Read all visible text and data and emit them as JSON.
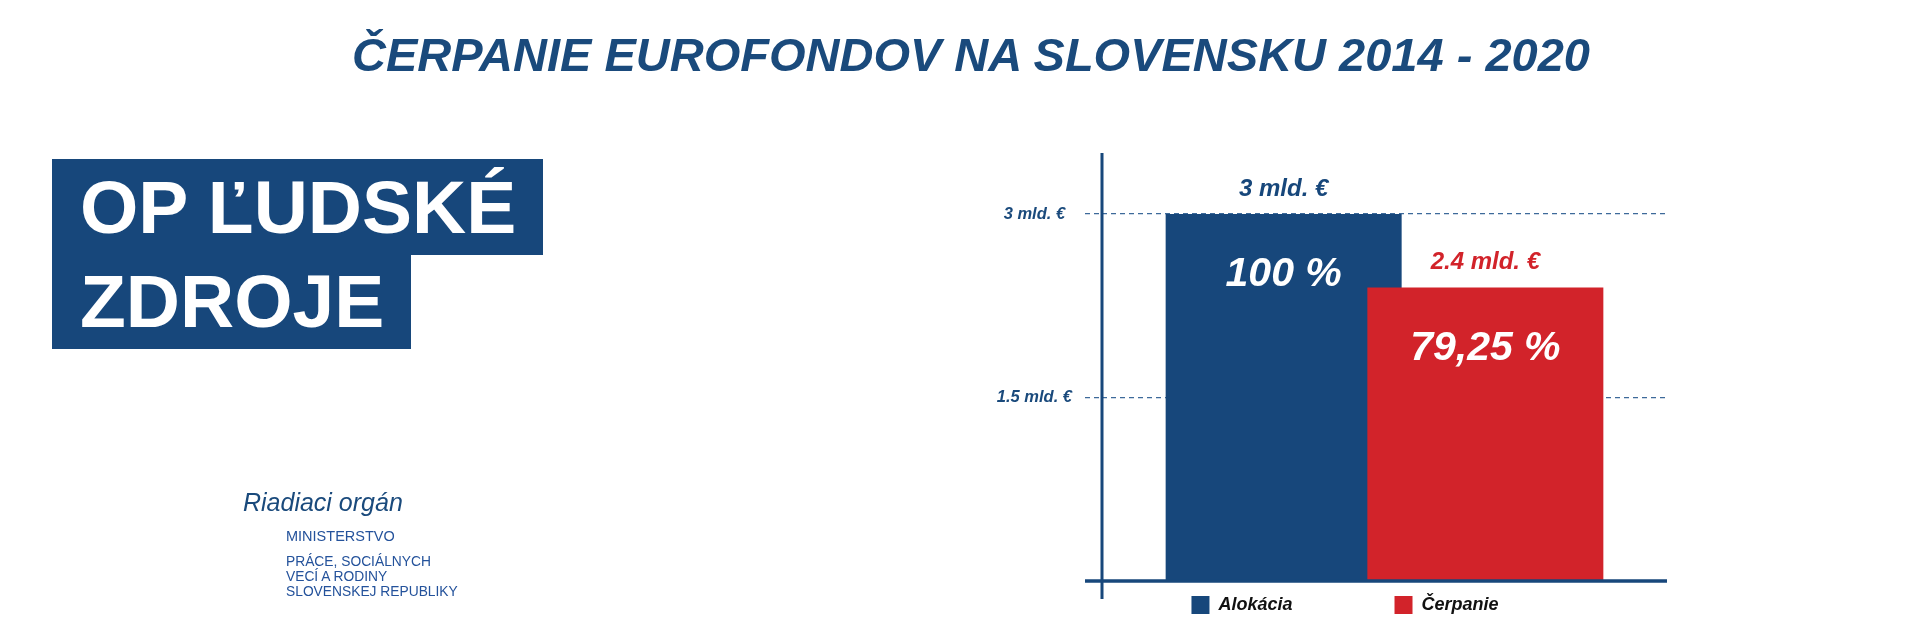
{
  "chart_data": {
    "type": "bar",
    "title": "ČERPANIE EUROFONDOV NA SLOVENSKU 2014 - 2020",
    "subtitle": "OP ĽUDSKÉ ZDROJE",
    "categories": [
      null
    ],
    "series": [
      {
        "name": "Alokácia",
        "color": "#17477b",
        "values": [
          3
        ],
        "value_labels": [
          "3 mld. €"
        ]
      },
      {
        "name": "Čerpanie",
        "color": "#d2232a",
        "values": [
          2.4
        ],
        "value_labels": [
          "2.4 mld. €"
        ]
      }
    ],
    "ylim": [
      0,
      3.5
    ],
    "yticks": [
      {
        "value": 1.5,
        "label": "1.5 mld. €"
      },
      {
        "value": 3,
        "label": "3 mld. €"
      }
    ],
    "grid": "y",
    "legend": "bottom",
    "annotations": [
      "100 %",
      "79,25 %",
      "Riadiaci orgán",
      "MINISTERSTVO",
      "PRÁCE, SOCIÁLNYCH\nVECÍ A RODINY\nSLOVENSKEJ REPUBLIKY"
    ]
  }
}
